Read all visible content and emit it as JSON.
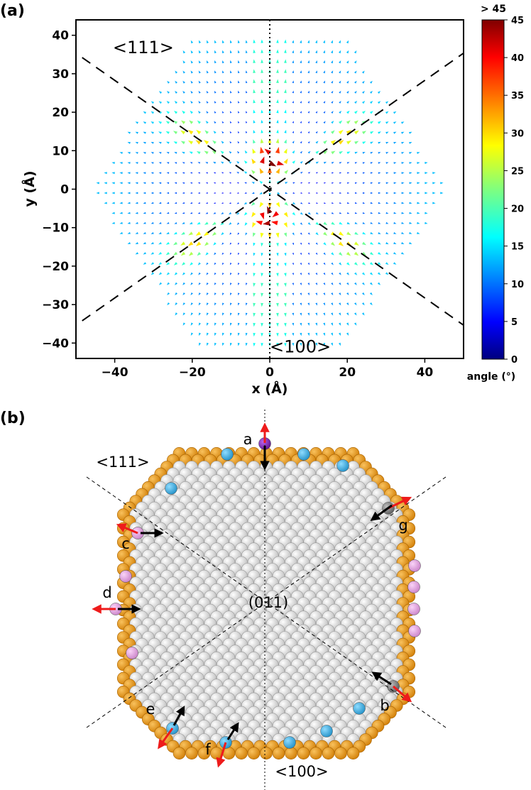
{
  "panel_a": {
    "label": "(a)",
    "chart_data": {
      "type": "quiver",
      "title": "",
      "xlabel": "x (Å)",
      "ylabel": "y (Å)",
      "xlim": [
        -50,
        50
      ],
      "ylim": [
        -44,
        44
      ],
      "xticks": [
        "−40",
        "−20",
        "0",
        "20",
        "40"
      ],
      "xtick_values": [
        -40,
        -20,
        0,
        20,
        40
      ],
      "yticks": [
        "−40",
        "−30",
        "−20",
        "−10",
        "0",
        "10",
        "20",
        "30",
        "40"
      ],
      "ytick_values": [
        -40,
        -30,
        -20,
        -10,
        0,
        10,
        20,
        30,
        40
      ],
      "grid": false,
      "annotations": [
        {
          "text": "<111>",
          "x": -35,
          "y": 35
        },
        {
          "text": "<100>",
          "x": 11,
          "y": -41
        }
      ],
      "guide_lines": {
        "diagonal_slope_deg": 35.26,
        "vertical_at_x": 0
      },
      "field_extent": {
        "x_halfwidth": 46,
        "y_halfheight": 40
      },
      "max_angle_deg": 45,
      "colorbar": {
        "label": "angle (°)",
        "over_label": "> 45",
        "min": 0,
        "max": 45,
        "ticks": [
          "0",
          "5",
          "10",
          "15",
          "20",
          "25",
          "30",
          "35",
          "40",
          "45"
        ],
        "tick_values": [
          0,
          5,
          10,
          15,
          20,
          25,
          30,
          35,
          40,
          45
        ],
        "colormap": "jet"
      }
    }
  },
  "panel_b": {
    "label": "(b)",
    "plane_label": "(011)",
    "dir_111_label": "<111>",
    "dir_100_label": "<100>",
    "site_labels": [
      "a",
      "b",
      "c",
      "d",
      "e",
      "f",
      "g"
    ],
    "colors": {
      "bulk": "#d6d6d6",
      "edge": "#e8930e",
      "cyan": "#2ea9e0",
      "pink": "#e29ee0",
      "purple": "#7d1fb6",
      "gray": "#7a7a7a",
      "red_arrow": "#ee1b1b",
      "black_arrow": "#000000"
    }
  }
}
